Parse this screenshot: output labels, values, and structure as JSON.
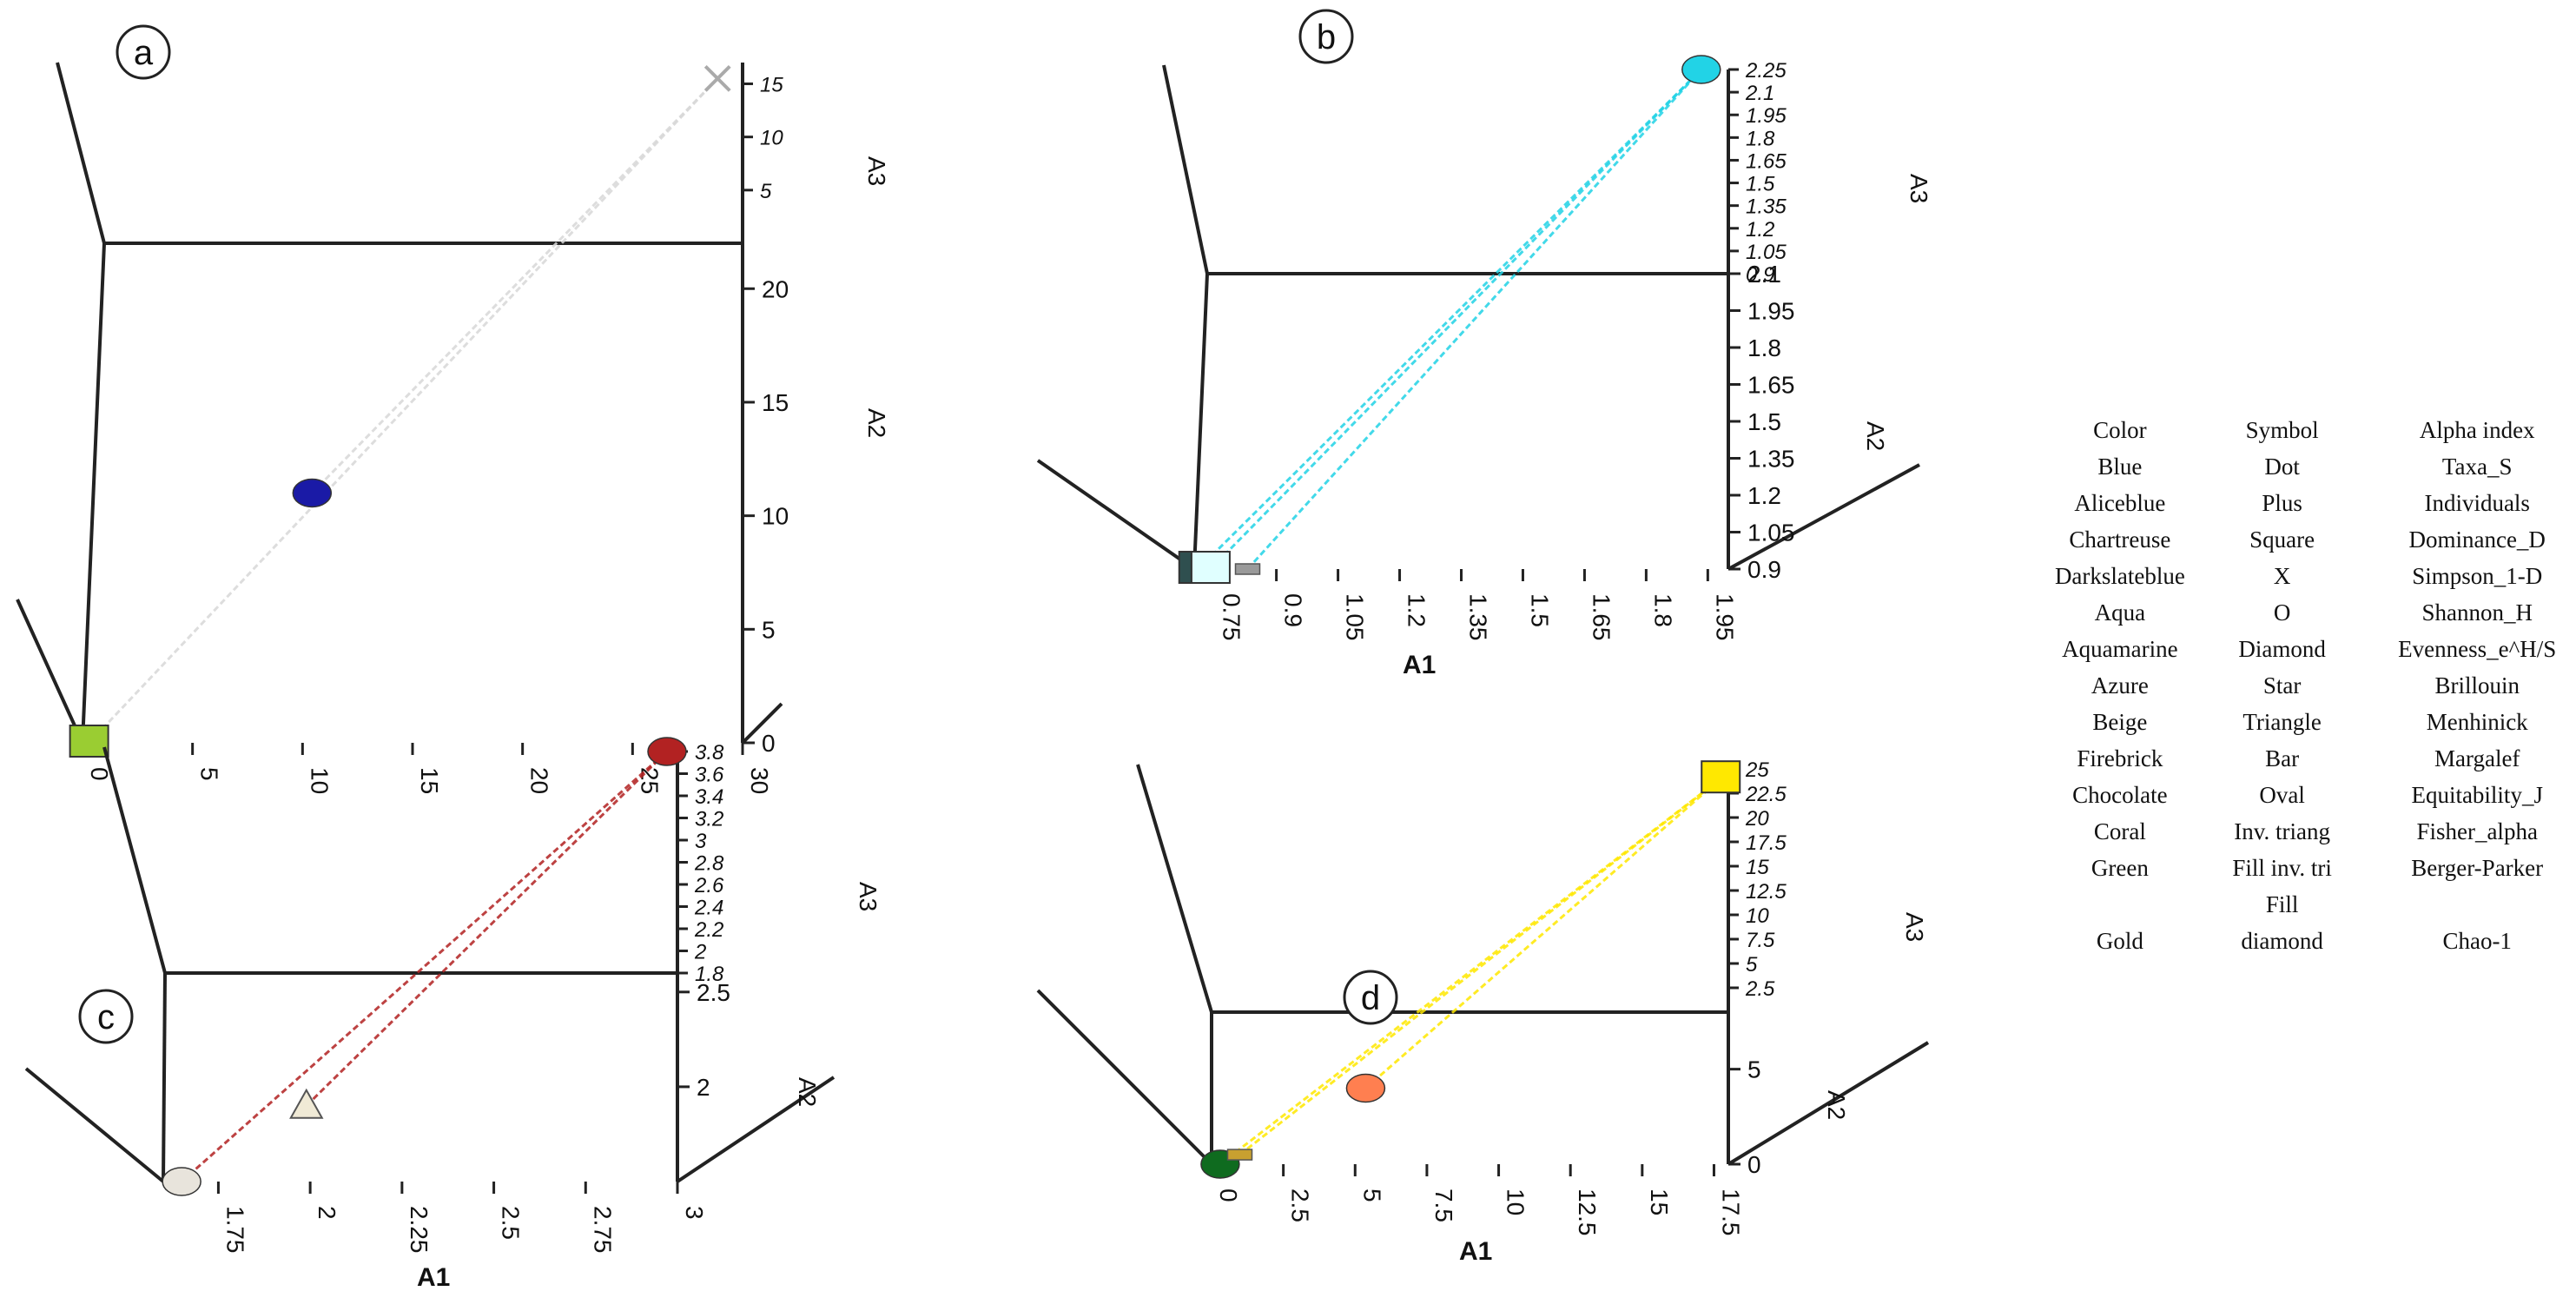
{
  "chart_data": [
    {
      "panel": "a",
      "type": "scatter3d",
      "xlabel": "",
      "ylabel": "A2",
      "zlabel": "A3",
      "x_ticks": [
        "0",
        "5",
        "10",
        "15",
        "20",
        "25",
        "30"
      ],
      "y_ticks": [
        "0",
        "5",
        "10",
        "15",
        "20"
      ],
      "z_ticks": [
        "5",
        "10",
        "15"
      ],
      "xlim": [
        0,
        30
      ],
      "ylim": [
        0,
        22
      ],
      "zlim": [
        0,
        17
      ],
      "points": [
        {
          "name": "Dominance_D",
          "marker": "square",
          "color": "#9acd32",
          "x": 0.3,
          "y": 0,
          "z": 0
        },
        {
          "name": "Simpson_1-D",
          "marker": "sphere",
          "color": "#1a1aa6",
          "x": 11,
          "y": 11,
          "z": 0
        },
        {
          "name": "Taxa_S",
          "marker": "x",
          "color": "#d8d8d8",
          "x": 30,
          "y": 22,
          "z": 15.5
        }
      ]
    },
    {
      "panel": "b",
      "type": "scatter3d",
      "xlabel": "A1",
      "ylabel": "A2",
      "zlabel": "A3",
      "x_ticks": [
        "0.75",
        "0.9",
        "1.05",
        "1.2",
        "1.35",
        "1.5",
        "1.65",
        "1.8",
        "1.95"
      ],
      "y_ticks": [
        "0.9",
        "1.05",
        "1.2",
        "1.35",
        "1.5",
        "1.65",
        "1.8",
        "1.95",
        "2.1"
      ],
      "z_ticks": [
        "0.9",
        "1.05",
        "1.2",
        "1.35",
        "1.5",
        "1.65",
        "1.8",
        "1.95",
        "2.1",
        "2.25"
      ],
      "xlim": [
        0.7,
        2.0
      ],
      "ylim": [
        0.9,
        2.1
      ],
      "zlim": [
        0.9,
        2.25
      ],
      "points": [
        {
          "name": "Evenness_e^H/S",
          "marker": "box",
          "color": "#2f4f4f",
          "x": 0.71,
          "y": 0.9,
          "z": 0.9
        },
        {
          "name": "Brillouin",
          "marker": "box",
          "color": "#e0ffff",
          "x": 0.74,
          "y": 0.9,
          "z": 0.9
        },
        {
          "name": "Margalef",
          "marker": "bar",
          "color": "#9a9a9a",
          "x": 0.83,
          "y": 0.9,
          "z": 0.9
        },
        {
          "name": "Shannon_H",
          "marker": "sphere",
          "color": "#22d3e6",
          "x": 1.97,
          "y": 2.1,
          "z": 2.25
        }
      ]
    },
    {
      "panel": "c",
      "type": "scatter3d",
      "xlabel": "A1",
      "ylabel": "A2",
      "zlabel": "A3",
      "x_ticks": [
        "1.75",
        "2",
        "2.25",
        "2.5",
        "2.75",
        "3"
      ],
      "y_ticks": [
        "2",
        "2.5"
      ],
      "z_ticks": [
        "1.8",
        "2",
        "2.2",
        "2.4",
        "2.6",
        "2.8",
        "3",
        "3.2",
        "3.4",
        "3.6",
        "3.8"
      ],
      "xlim": [
        1.6,
        3.0
      ],
      "ylim": [
        1.5,
        2.6
      ],
      "zlim": [
        1.8,
        3.8
      ],
      "points": [
        {
          "name": "Chao-1",
          "marker": "sphere",
          "color": "#e8e4dc",
          "x": 1.65,
          "y": 1.5,
          "z": 1.8
        },
        {
          "name": "Menhinick",
          "marker": "triangle",
          "color": "#f0ead6",
          "x": 2.0,
          "y": 1.9,
          "z": 1.8
        },
        {
          "name": "Fisher_alpha",
          "marker": "sphere",
          "color": "#b22222",
          "x": 3.0,
          "y": 2.6,
          "z": 3.8
        }
      ]
    },
    {
      "panel": "d",
      "type": "scatter3d",
      "xlabel": "A1",
      "ylabel": "A2",
      "zlabel": "A3",
      "x_ticks": [
        "0",
        "2.5",
        "5",
        "7.5",
        "10",
        "12.5",
        "15",
        "17.5"
      ],
      "y_ticks": [
        "0",
        "5"
      ],
      "z_ticks": [
        "2.5",
        "5",
        "7.5",
        "10",
        "12.5",
        "15",
        "17.5",
        "20",
        "22.5",
        "25"
      ],
      "xlim": [
        0,
        18
      ],
      "ylim": [
        0,
        8
      ],
      "zlim": [
        0,
        25
      ],
      "points": [
        {
          "name": "Berger-Parker",
          "marker": "sphere",
          "color": "#0f6b1f",
          "x": 0.3,
          "y": 0,
          "z": 0
        },
        {
          "name": "Equitability_J",
          "marker": "bar",
          "color": "#c8a030",
          "x": 1,
          "y": 0.5,
          "z": 0
        },
        {
          "name": "Fisher_alpha",
          "marker": "sphere",
          "color": "#ff7f50",
          "x": 5.5,
          "y": 4,
          "z": 0
        },
        {
          "name": "Individuals",
          "marker": "square",
          "color": "#ffe800",
          "x": 18,
          "y": 8,
          "z": 24
        }
      ]
    }
  ],
  "panel_labels": {
    "a": "a",
    "b": "b",
    "c": "c",
    "d": "d"
  },
  "legend": {
    "headers": [
      "Color",
      "Symbol",
      "Alpha index"
    ],
    "rows": [
      [
        "Blue",
        "Dot",
        "Taxa_S"
      ],
      [
        "Aliceblue",
        "Plus",
        "Individuals"
      ],
      [
        "Chartreuse",
        "Square",
        "Dominance_D"
      ],
      [
        "Darkslateblue",
        "X",
        "Simpson_1-D"
      ],
      [
        "Aqua",
        "O",
        "Shannon_H"
      ],
      [
        "Aquamarine",
        "Diamond",
        "Evenness_e^H/S"
      ],
      [
        "Azure",
        "Star",
        "Brillouin"
      ],
      [
        "Beige",
        "Triangle",
        "Menhinick"
      ],
      [
        "Firebrick",
        "Bar",
        "Margalef"
      ],
      [
        "Chocolate",
        "Oval",
        "Equitability_J"
      ],
      [
        "Coral",
        "Inv. triang",
        "Fisher_alpha"
      ],
      [
        "Green",
        "Fill  inv. tri",
        "Berger-Parker"
      ],
      [
        "",
        "Fill",
        ""
      ],
      [
        "Gold",
        "diamond",
        "Chao-1"
      ]
    ]
  }
}
